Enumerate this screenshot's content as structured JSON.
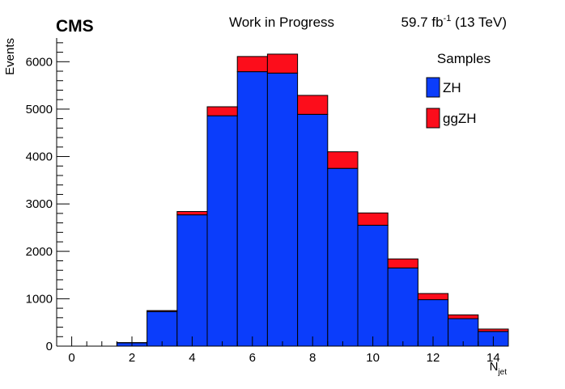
{
  "header": {
    "experiment": "CMS",
    "status": "Work in Progress",
    "lumi_value": "59.7 fb",
    "lumi_exp": "-1",
    "lumi_energy": " (13 TeV)"
  },
  "legend": {
    "title": "Samples",
    "placement": "top-right"
  },
  "chart_data": {
    "type": "bar",
    "stacked": true,
    "histogram": true,
    "xlabel": "N",
    "xlabel_sub": "jet",
    "ylabel": "Events",
    "xlim": [
      -0.5,
      14.5
    ],
    "ylim": [
      0,
      6500
    ],
    "bin_edges": [
      -0.5,
      0.5,
      1.5,
      2.5,
      3.5,
      4.5,
      5.5,
      6.5,
      7.5,
      8.5,
      9.5,
      10.5,
      11.5,
      12.5,
      13.5,
      14.5
    ],
    "x_ticks": [
      0,
      2,
      4,
      6,
      8,
      10,
      12,
      14
    ],
    "y_ticks": [
      0,
      1000,
      2000,
      3000,
      4000,
      5000,
      6000
    ],
    "series": [
      {
        "name": "ZH",
        "color": "#0b3dfb",
        "values": [
          0,
          0,
          70,
          730,
          2770,
          4860,
          5790,
          5760,
          4890,
          3750,
          2550,
          1650,
          980,
          580,
          310
        ]
      },
      {
        "name": "ggZH",
        "color": "#fc0d1b",
        "values": [
          0,
          0,
          5,
          20,
          70,
          190,
          320,
          400,
          400,
          350,
          260,
          190,
          130,
          80,
          50
        ]
      }
    ]
  }
}
